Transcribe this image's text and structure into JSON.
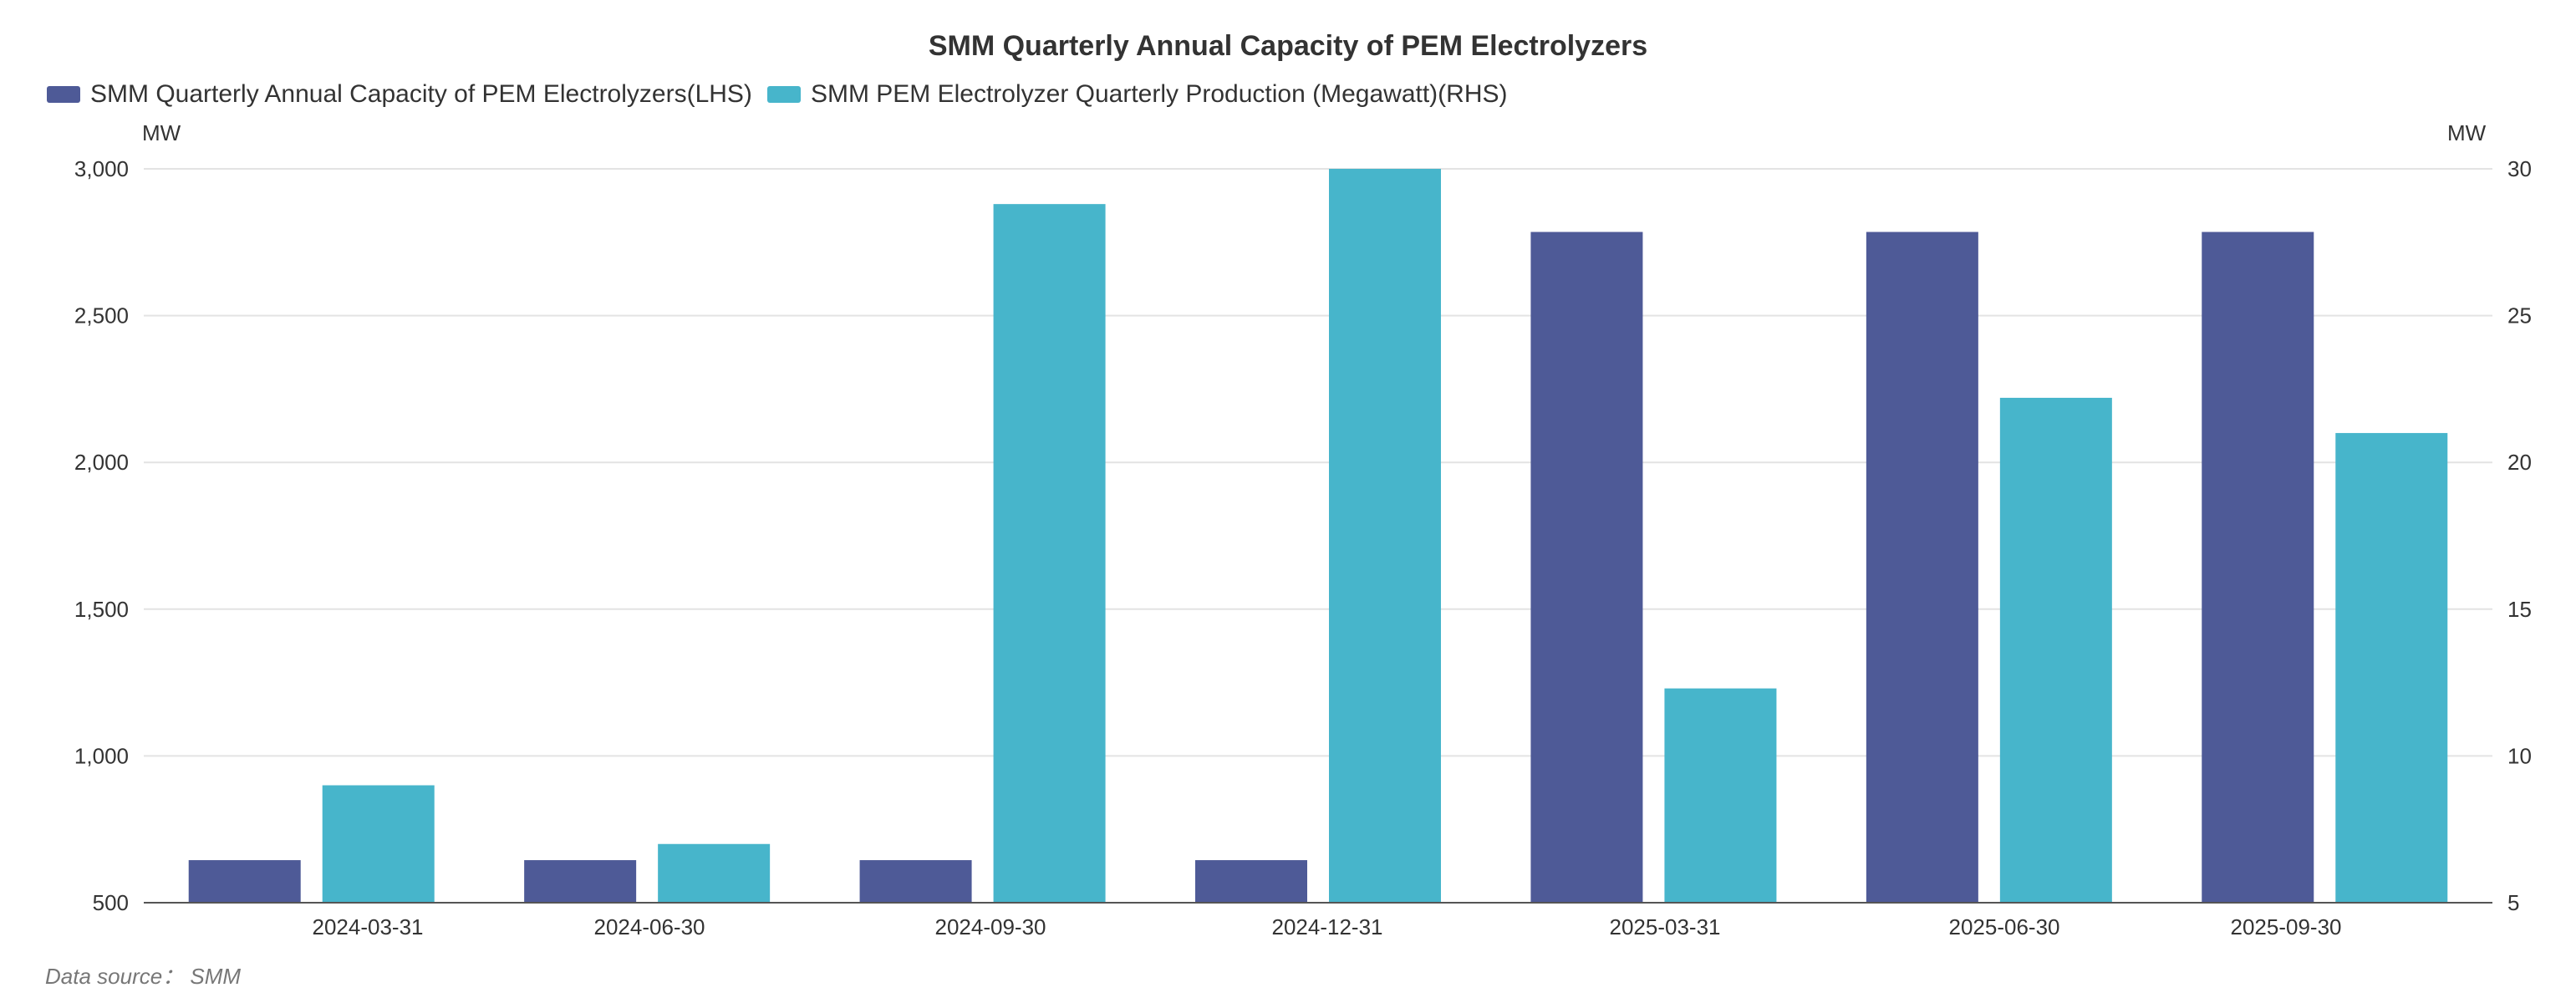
{
  "chart_data": {
    "type": "bar",
    "title": "SMM Quarterly Annual Capacity of PEM Electrolyzers",
    "categories": [
      "2024-03-31",
      "2024-06-30",
      "2024-09-30",
      "2024-12-31",
      "2025-03-31",
      "2025-06-30",
      "2025-09-30"
    ],
    "series": [
      {
        "name": "SMM Quarterly Annual Capacity of PEM Electrolyzers(LHS)",
        "axis": "left",
        "color": "#4e5a97",
        "values": [
          645,
          645,
          645,
          645,
          2785,
          2785,
          2785
        ]
      },
      {
        "name": "SMM PEM Electrolyzer Quarterly Production (Megawatt)(RHS)",
        "axis": "right",
        "color": "#47b5cb",
        "values": [
          9,
          7,
          28.8,
          30,
          12.3,
          22.2,
          21
        ]
      }
    ],
    "y_left": {
      "unit": "MW",
      "lim": [
        500,
        3000
      ],
      "ticks": [
        500,
        1000,
        1500,
        2000,
        2500,
        3000
      ],
      "tick_labels": [
        "500",
        "1,000",
        "1,500",
        "2,000",
        "2,500",
        "3,000"
      ]
    },
    "y_right": {
      "unit": "MW",
      "lim": [
        5,
        30
      ],
      "ticks": [
        5,
        10,
        15,
        20,
        25,
        30
      ],
      "tick_labels": [
        "5",
        "10",
        "15",
        "20",
        "25",
        "30"
      ]
    },
    "grid": true,
    "legend": "top-left",
    "source": "Data source： SMM"
  }
}
